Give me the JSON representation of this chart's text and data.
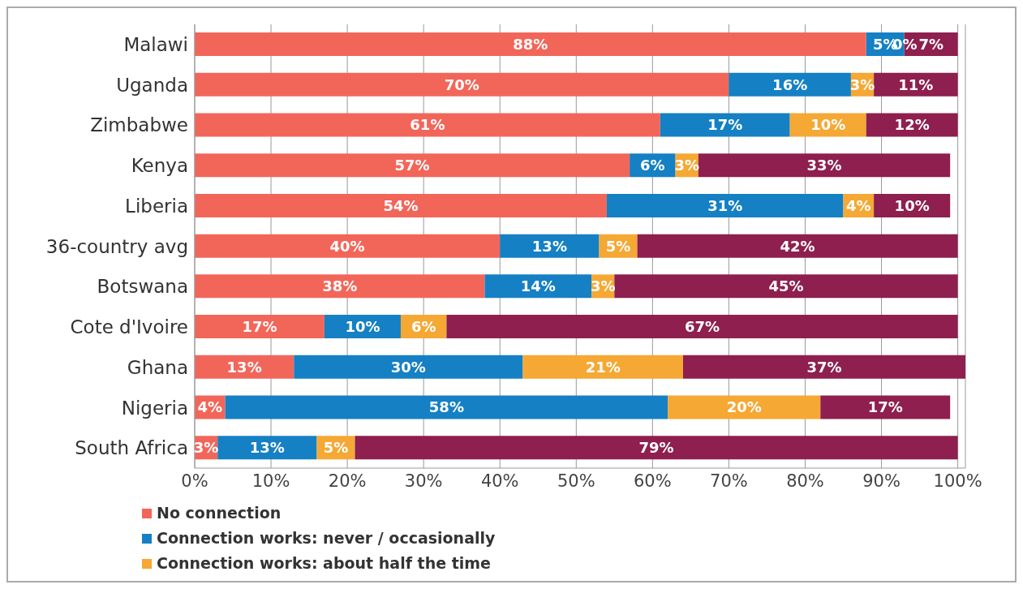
{
  "chart_data": {
    "type": "bar",
    "orientation": "horizontal",
    "stacked": true,
    "categories": [
      "Malawi",
      "Uganda",
      "Zimbabwe",
      "Kenya",
      "Liberia",
      "36-country avg",
      "Botswana",
      "Cote d'Ivoire",
      "Ghana",
      "Nigeria",
      "South Africa"
    ],
    "series": [
      {
        "name": "No connection",
        "color": "#f2665a",
        "values": [
          88,
          70,
          61,
          57,
          54,
          40,
          38,
          17,
          13,
          4,
          3
        ],
        "value_labels": [
          "88%",
          "70%",
          "61%",
          "57%",
          "54%",
          "40%",
          "38%",
          "17%",
          "13%",
          "4%",
          "3%"
        ]
      },
      {
        "name": "Connection works: never / occasionally",
        "color": "#1580c4",
        "values": [
          5,
          16,
          17,
          6,
          31,
          13,
          14,
          10,
          30,
          58,
          13
        ],
        "value_labels": [
          "5%",
          "16%",
          "17%",
          "6%",
          "31%",
          "13%",
          "14%",
          "10%",
          "30%",
          "58%",
          "13%"
        ]
      },
      {
        "name": "Connection works: about half the time",
        "color": "#f5a833",
        "values": [
          0,
          3,
          10,
          3,
          4,
          5,
          3,
          6,
          21,
          20,
          5
        ],
        "value_labels": [
          "0%",
          "3%",
          "10%",
          "3%",
          "4%",
          "5%",
          "3%",
          "6%",
          "21%",
          "20%",
          "5%"
        ]
      },
      {
        "color": "#8e1f4e",
        "values": [
          7,
          11,
          12,
          33,
          10,
          42,
          45,
          67,
          37,
          17,
          79
        ],
        "value_labels": [
          "7%",
          "11%",
          "12%",
          "33%",
          "10%",
          "42%",
          "45%",
          "67%",
          "37%",
          "17%",
          "79%"
        ]
      }
    ],
    "xlim": [
      0,
      101
    ],
    "xticks": [
      {
        "value": 0,
        "label": "0%"
      },
      {
        "value": 10,
        "label": "10%"
      },
      {
        "value": 20,
        "label": "20%"
      },
      {
        "value": 30,
        "label": "30%"
      },
      {
        "value": 40,
        "label": "40%"
      },
      {
        "value": 50,
        "label": "50%"
      },
      {
        "value": 60,
        "label": "60%"
      },
      {
        "value": 70,
        "label": "70%"
      },
      {
        "value": 80,
        "label": "80%"
      },
      {
        "value": 90,
        "label": "90%"
      },
      {
        "value": 100,
        "label": "100%"
      }
    ],
    "grid": "x",
    "legend": "bottom left"
  }
}
